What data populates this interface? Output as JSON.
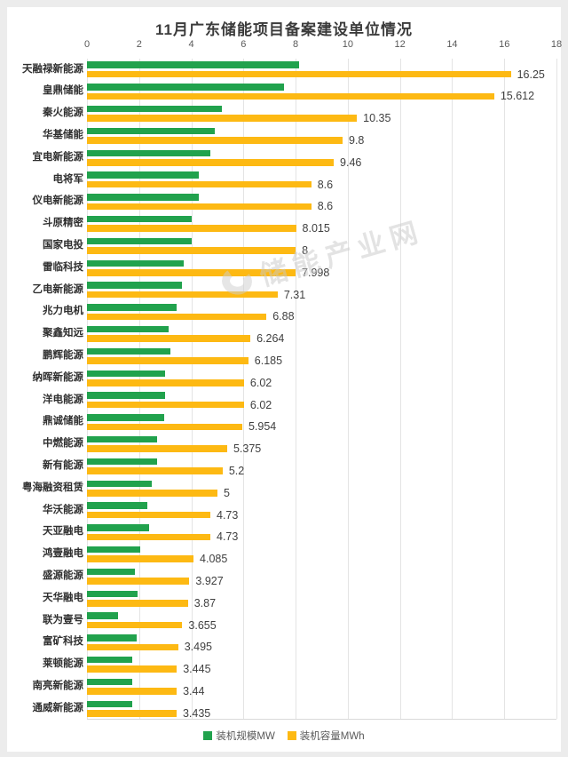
{
  "title": "11月广东储能项目备案建设单位情况",
  "watermark": {
    "text": "储能产业网"
  },
  "colors": {
    "mw_green": "#21a24d",
    "mwh_yellow": "#fdb913",
    "gridline": "#e4e4e4",
    "tick_text": "#595959",
    "value_text": "#404040",
    "category_text": "#2f2f2f",
    "page_background": "#ececec",
    "panel_background": "#ffffff"
  },
  "legend": [
    {
      "label": "装机规模MW",
      "color": "#21a24d"
    },
    {
      "label": "装机容量MWh",
      "color": "#fdb913"
    }
  ],
  "chart_data": {
    "type": "bar",
    "orientation": "horizontal",
    "title": "11月广东储能项目备案建设单位情况",
    "xlabel": "",
    "ylabel": "",
    "x_axis": {
      "position": "top",
      "min": 0,
      "max": 18,
      "ticks": [
        0,
        2,
        4,
        6,
        8,
        10,
        12,
        14,
        16,
        18
      ]
    },
    "grid": true,
    "legend_position": "bottom",
    "categories": [
      "天融禄新能源",
      "皇鼎储能",
      "秦火能源",
      "华基储能",
      "宜电新能源",
      "电将军",
      "仪电新能源",
      "斗原精密",
      "国家电投",
      "雷临科技",
      "乙电新能源",
      "兆力电机",
      "聚鑫知远",
      "鹏辉能源",
      "纳晖新能源",
      "洋电能源",
      "鼎诚储能",
      "中燃能源",
      "新有能源",
      "粤海融资租赁",
      "华沃能源",
      "天亚融电",
      "鸿壹融电",
      "盛源能源",
      "天华融电",
      "联为壹号",
      "富矿科技",
      "莱顿能源",
      "南亮新能源",
      "通威新能源"
    ],
    "series": [
      {
        "name": "装机规模MW",
        "color": "#21a24d",
        "values": [
          8.125,
          7.55,
          5.175,
          4.9,
          4.73,
          4.3,
          4.3,
          4.008,
          4,
          3.7,
          3.655,
          3.44,
          3.132,
          3.2,
          3.01,
          3.01,
          2.977,
          2.688,
          2.7,
          2.5,
          2.3,
          2.365,
          2.043,
          1.85,
          1.935,
          1.2,
          1.9,
          1.72,
          1.72,
          1.72
        ],
        "data_labels_shown": false
      },
      {
        "name": "装机容量MWh",
        "color": "#fdb913",
        "values": [
          16.25,
          15.612,
          10.35,
          9.8,
          9.46,
          8.6,
          8.6,
          8.015,
          8,
          7.998,
          7.31,
          6.88,
          6.264,
          6.185,
          6.02,
          6.02,
          5.954,
          5.375,
          5.2,
          5,
          4.73,
          4.73,
          4.085,
          3.927,
          3.87,
          3.655,
          3.495,
          3.445,
          3.44,
          3.435
        ],
        "labels": [
          "16.25",
          "15.612",
          "10.35",
          "9.8",
          "9.46",
          "8.6",
          "8.6",
          "8.015",
          "8",
          "7.998",
          "7.31",
          "6.88",
          "6.264",
          "6.185",
          "6.02",
          "6.02",
          "5.954",
          "5.375",
          "5.2",
          "5",
          "4.73",
          "4.73",
          "4.085",
          "3.927",
          "3.87",
          "3.655",
          "3.495",
          "3.445",
          "3.44",
          "3.435"
        ],
        "data_labels_shown": true
      }
    ]
  }
}
